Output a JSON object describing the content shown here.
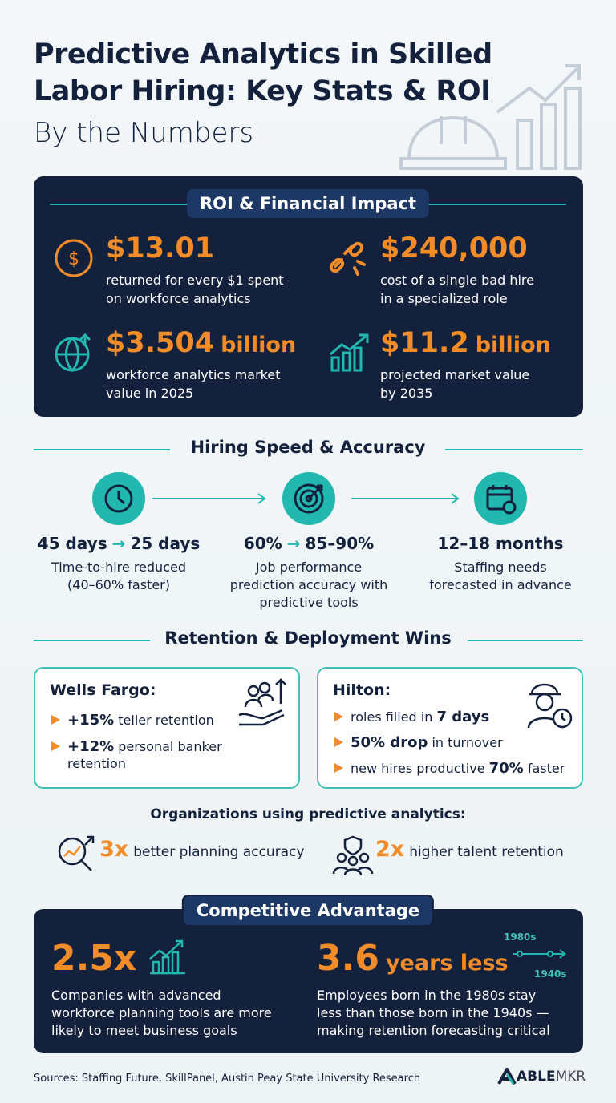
{
  "header": {
    "title": [
      "Predictive Analytics in Skilled",
      "Labor Hiring: Key Stats & ROI"
    ],
    "subtitle": "By the Numbers"
  },
  "roi": {
    "heading": "ROI & Financial Impact",
    "stats": [
      {
        "value": "$13.01",
        "lines": [
          "returned for every $1 spent",
          "on workforce analytics"
        ]
      },
      {
        "value": "$240,000",
        "lines": [
          "cost of a single bad hire",
          "in a specialized role"
        ]
      },
      {
        "value": "$3.504",
        "unit": "billion",
        "lines": [
          "workforce analytics market",
          "value in 2025"
        ]
      },
      {
        "value": "$11.2",
        "unit": "billion",
        "lines": [
          "projected market value",
          "by 2035"
        ]
      }
    ]
  },
  "speed": {
    "heading": "Hiring Speed & Accuracy",
    "items": [
      {
        "from": "45 days",
        "to": "25 days",
        "lines": [
          "Time-to-hire reduced",
          "(40–60% faster)"
        ]
      },
      {
        "from": "60%",
        "to": "85–90%",
        "lines": [
          "Job performance",
          "prediction accuracy with",
          "predictive tools"
        ]
      },
      {
        "from": "12–18 months",
        "lines": [
          "Staffing needs",
          "forecasted in advance"
        ]
      }
    ]
  },
  "retention": {
    "heading": "Retention & Deployment Wins",
    "cards": [
      {
        "company": "Wells Fargo:",
        "bullets": [
          [
            {
              "text": "+15%",
              "bold": true
            },
            {
              "text": "teller retention"
            }
          ],
          [
            {
              "text": "+12%",
              "bold": true
            },
            {
              "text": "personal banker retention"
            }
          ]
        ]
      },
      {
        "company": "Hilton:",
        "bullets": [
          [
            {
              "text": "roles filled in"
            },
            {
              "text": "7 days",
              "bold": true
            }
          ],
          [
            {
              "text": "50% drop",
              "bold": true
            },
            {
              "text": "in turnover"
            }
          ],
          [
            {
              "text": "new hires productive"
            },
            {
              "text": "70%",
              "bold": true
            },
            {
              "text": "faster"
            }
          ]
        ]
      }
    ]
  },
  "organizations": {
    "heading": "Organizations using predictive analytics:",
    "items": [
      {
        "value": "3x",
        "text": "better planning accuracy"
      },
      {
        "value": "2x",
        "text": "higher talent retention"
      }
    ]
  },
  "competitive": {
    "heading": "Competitive Advantage",
    "items": [
      {
        "value": "2.5x",
        "lines": [
          "Companies with advanced",
          "workforce planning tools are more",
          "likely to meet business goals"
        ]
      },
      {
        "value": "3.6",
        "unit": "years less",
        "lines": [
          "Employees born in the 1980s stay",
          "less than those born in the 1940s —",
          "making retention forecasting critical"
        ],
        "timeline": [
          "1980s",
          "1940s"
        ]
      }
    ]
  },
  "footer": {
    "sources": "Sources: Staffing Future, SkillPanel, Austin Peay State University Research",
    "logo": [
      "ABLE",
      "MKR"
    ]
  }
}
